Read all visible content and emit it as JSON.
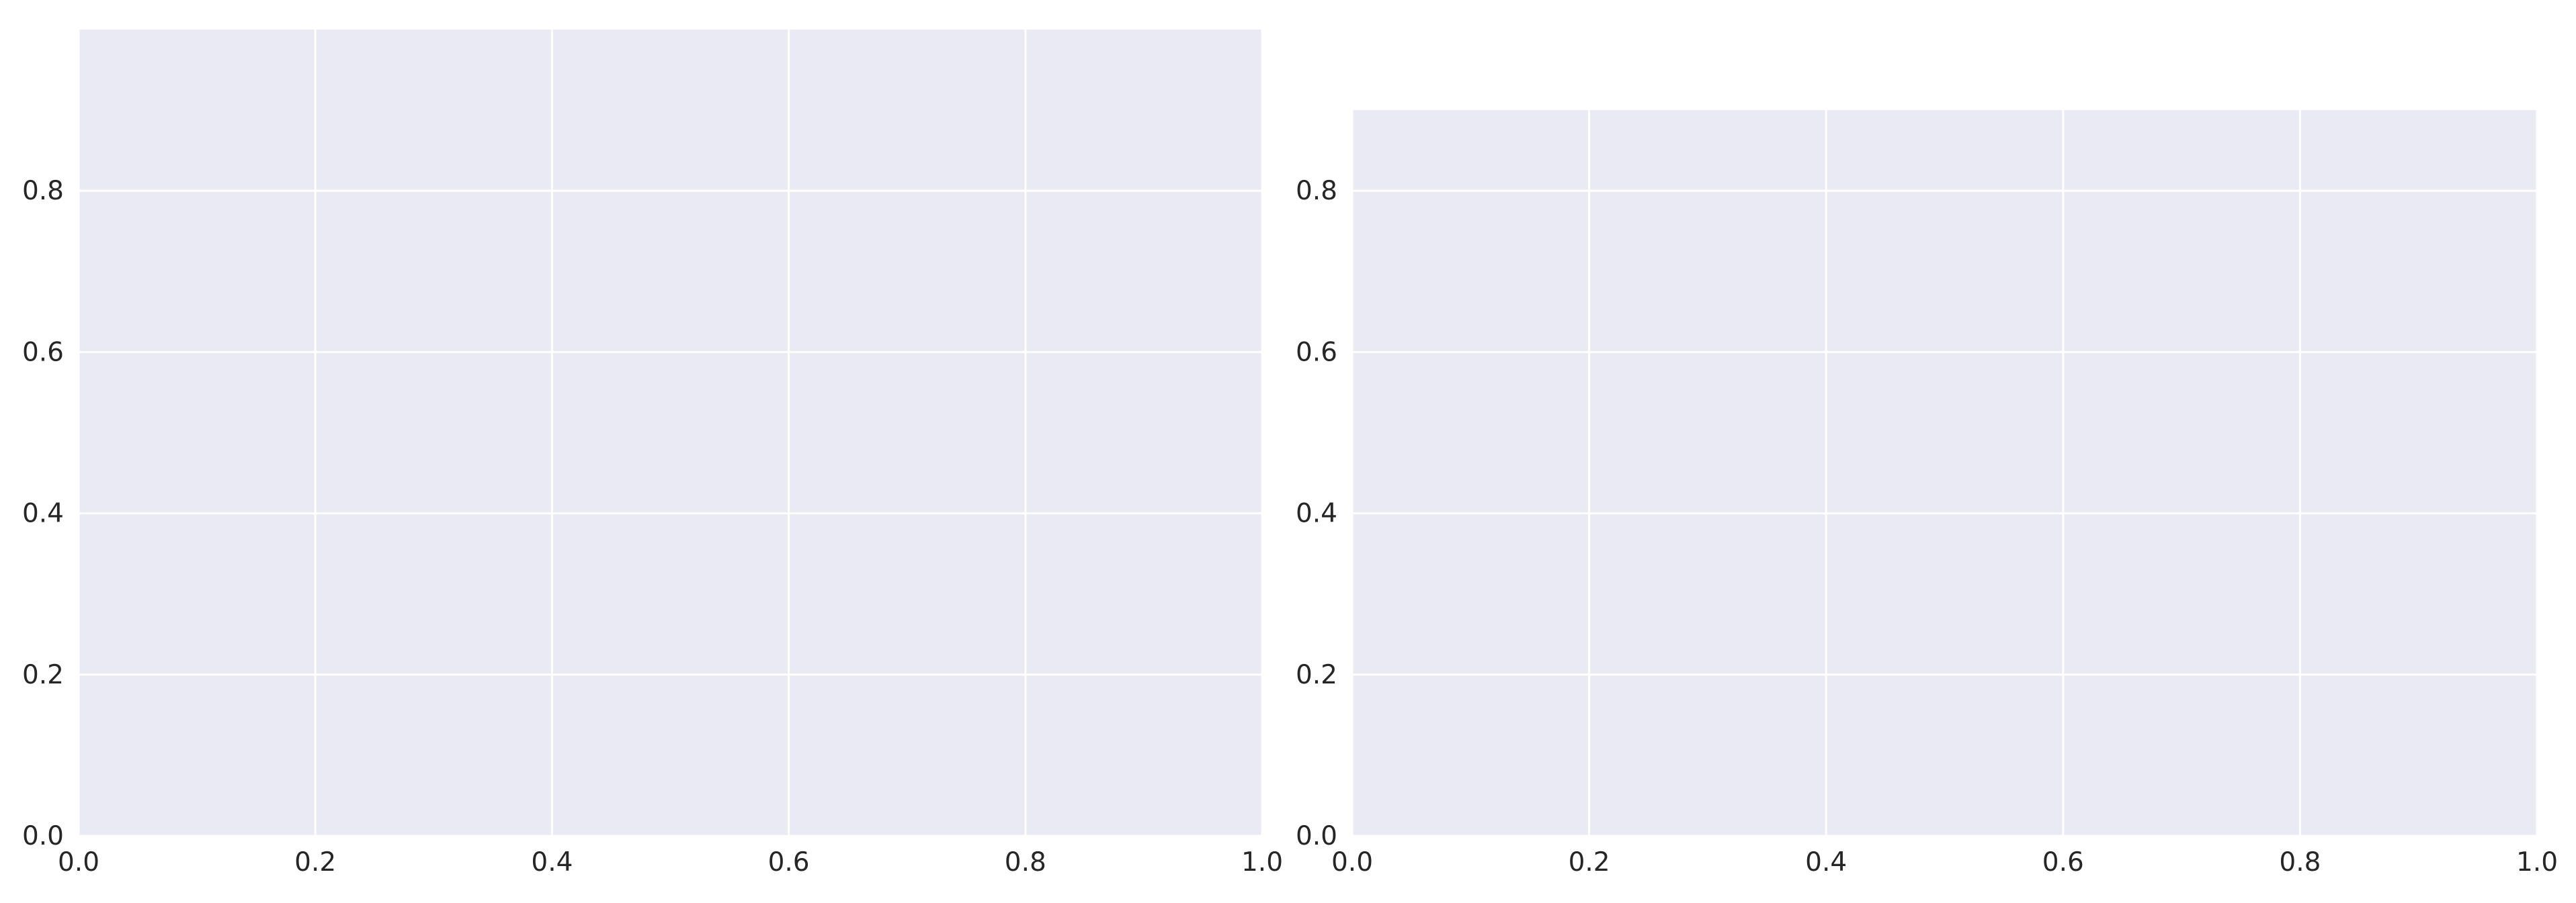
{
  "chart_data": [
    {
      "type": "line",
      "grid": true,
      "facecolor": "#eaeaf2",
      "gridcolor": "#ffffff",
      "xlim": [
        0,
        1
      ],
      "xticks": [
        {
          "value": 0,
          "label": "0.0"
        },
        0.2,
        0.4,
        0.6,
        0.8,
        {
          "value": 1,
          "label": "1.0"
        }
      ],
      "ylim": [
        0,
        1
      ],
      "yticks": [
        {
          "value": 0,
          "label": "0.0"
        },
        0.2,
        0.4,
        0.6,
        0.8
      ]
    },
    {
      "type": "line",
      "grid": true,
      "facecolor": "#eaeaf2",
      "gridcolor": "#ffffff",
      "xlim": [
        0,
        1
      ],
      "xticks": [
        {
          "value": 0,
          "label": "0.0"
        },
        0.2,
        0.4,
        0.6,
        0.8,
        {
          "value": 1,
          "label": "1.0"
        }
      ],
      "ylim": [
        0,
        0.9
      ],
      "yticks": [
        {
          "value": 0,
          "label": "0.0"
        },
        0.2,
        0.4,
        0.6,
        0.8
      ]
    }
  ]
}
